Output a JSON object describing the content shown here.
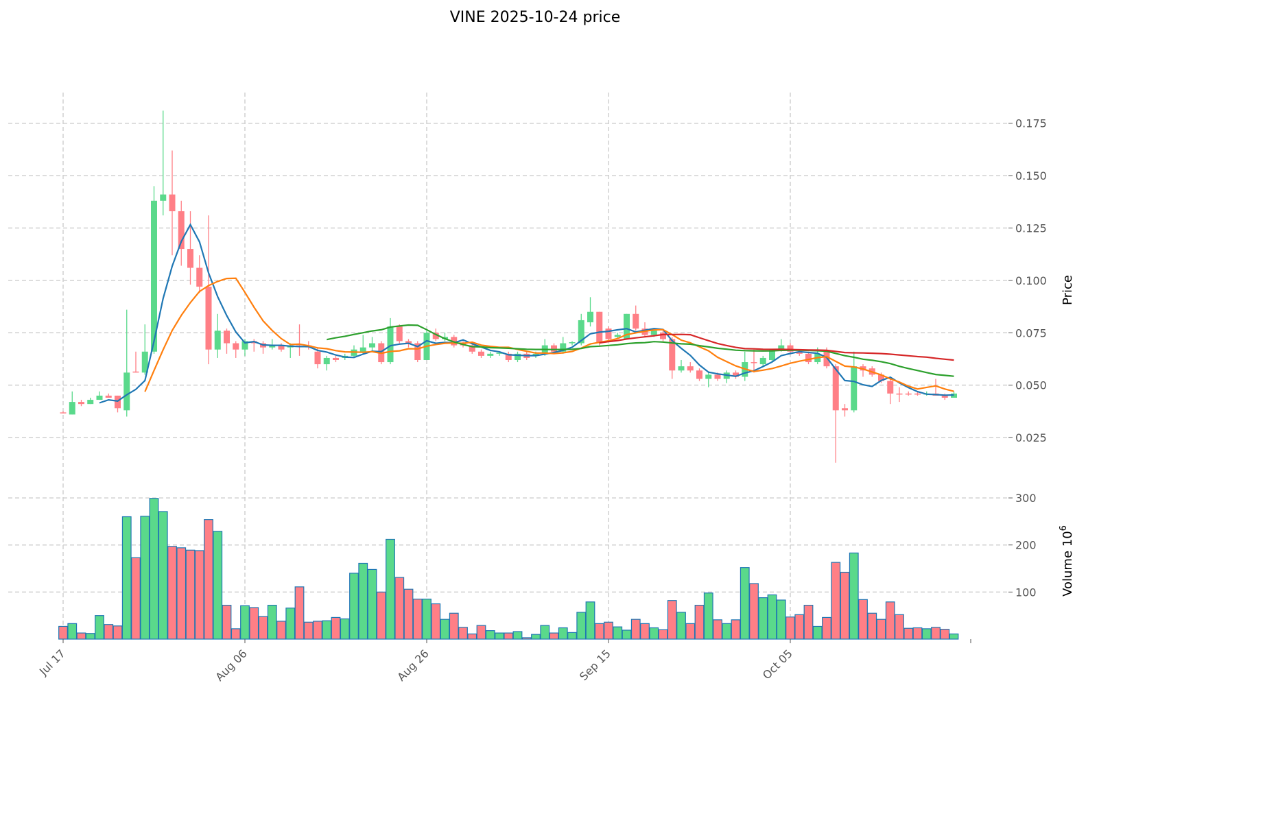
{
  "chart_data": {
    "type": "candlestick",
    "title": "VINE  2025-10-24  price",
    "ylabel": "Price",
    "volume_label": "Volume  10",
    "volume_label_exp": "6",
    "ylim": [
      0.008,
      0.188
    ],
    "volume_ylim": [
      0,
      338
    ],
    "grid": true,
    "start_date": "2025-07-17",
    "x_ticks": [
      {
        "index": 0,
        "label": "Jul 17"
      },
      {
        "index": 20,
        "label": "Aug 06"
      },
      {
        "index": 40,
        "label": "Aug 26"
      },
      {
        "index": 60,
        "label": "Sep 15"
      },
      {
        "index": 80,
        "label": "Oct 05"
      }
    ],
    "y_ticks": [
      {
        "value": 0.025,
        "label": "0.025"
      },
      {
        "value": 0.05,
        "label": "0.050"
      },
      {
        "value": 0.075,
        "label": "0.075"
      },
      {
        "value": 0.1,
        "label": "0.100"
      },
      {
        "value": 0.125,
        "label": "0.125"
      },
      {
        "value": 0.15,
        "label": "0.150"
      },
      {
        "value": 0.175,
        "label": "0.175"
      }
    ],
    "volume_ticks": [
      {
        "value": 100,
        "label": "100"
      },
      {
        "value": 200,
        "label": "200"
      },
      {
        "value": 300,
        "label": "300"
      }
    ],
    "moving_averages": [
      {
        "period": 5,
        "color": "#1f77b4"
      },
      {
        "period": 10,
        "color": "#ff7f0e"
      },
      {
        "period": 30,
        "color": "#2ca02c"
      },
      {
        "period": 60,
        "color": "#d62728"
      }
    ],
    "colors": {
      "up": "#5ad98b",
      "down": "#ff7f86",
      "volume_edge": "#1f77b4",
      "grid": "#d0d0d0"
    },
    "ohlc": [
      [
        0.037,
        0.0375,
        0.0365,
        0.0368
      ],
      [
        0.036,
        0.047,
        0.036,
        0.042
      ],
      [
        0.042,
        0.043,
        0.04,
        0.041
      ],
      [
        0.041,
        0.044,
        0.041,
        0.043
      ],
      [
        0.043,
        0.047,
        0.043,
        0.045
      ],
      [
        0.045,
        0.046,
        0.044,
        0.044
      ],
      [
        0.045,
        0.045,
        0.037,
        0.039
      ],
      [
        0.038,
        0.086,
        0.035,
        0.056
      ],
      [
        0.0565,
        0.066,
        0.056,
        0.056
      ],
      [
        0.056,
        0.079,
        0.055,
        0.066
      ],
      [
        0.066,
        0.145,
        0.065,
        0.138
      ],
      [
        0.138,
        0.181,
        0.131,
        0.141
      ],
      [
        0.141,
        0.162,
        0.112,
        0.133
      ],
      [
        0.133,
        0.138,
        0.107,
        0.115
      ],
      [
        0.115,
        0.133,
        0.098,
        0.106
      ],
      [
        0.106,
        0.112,
        0.094,
        0.097
      ],
      [
        0.097,
        0.131,
        0.06,
        0.067
      ],
      [
        0.067,
        0.084,
        0.063,
        0.076
      ],
      [
        0.076,
        0.077,
        0.065,
        0.07
      ],
      [
        0.07,
        0.071,
        0.063,
        0.067
      ],
      [
        0.067,
        0.072,
        0.064,
        0.071
      ],
      [
        0.071,
        0.072,
        0.066,
        0.07
      ],
      [
        0.07,
        0.071,
        0.065,
        0.068
      ],
      [
        0.068,
        0.072,
        0.067,
        0.069
      ],
      [
        0.069,
        0.07,
        0.066,
        0.067
      ],
      [
        0.068,
        0.07,
        0.063,
        0.069
      ],
      [
        0.0695,
        0.079,
        0.064,
        0.069
      ],
      [
        0.069,
        0.071,
        0.067,
        0.068
      ],
      [
        0.066,
        0.068,
        0.058,
        0.06
      ],
      [
        0.06,
        0.064,
        0.057,
        0.063
      ],
      [
        0.063,
        0.064,
        0.061,
        0.062
      ],
      [
        0.063,
        0.065,
        0.062,
        0.064
      ],
      [
        0.064,
        0.069,
        0.063,
        0.067
      ],
      [
        0.066,
        0.074,
        0.065,
        0.068
      ],
      [
        0.068,
        0.073,
        0.066,
        0.07
      ],
      [
        0.07,
        0.071,
        0.06,
        0.061
      ],
      [
        0.061,
        0.082,
        0.06,
        0.078
      ],
      [
        0.078,
        0.079,
        0.07,
        0.071
      ],
      [
        0.071,
        0.072,
        0.068,
        0.07
      ],
      [
        0.07,
        0.071,
        0.061,
        0.062
      ],
      [
        0.062,
        0.076,
        0.062,
        0.075
      ],
      [
        0.075,
        0.077,
        0.071,
        0.072
      ],
      [
        0.072,
        0.075,
        0.071,
        0.073
      ],
      [
        0.073,
        0.074,
        0.068,
        0.069
      ],
      [
        0.07,
        0.071,
        0.068,
        0.069
      ],
      [
        0.069,
        0.07,
        0.065,
        0.066
      ],
      [
        0.066,
        0.067,
        0.063,
        0.064
      ],
      [
        0.064,
        0.066,
        0.063,
        0.065
      ],
      [
        0.065,
        0.066,
        0.064,
        0.0655
      ],
      [
        0.065,
        0.066,
        0.061,
        0.062
      ],
      [
        0.062,
        0.066,
        0.061,
        0.065
      ],
      [
        0.065,
        0.066,
        0.062,
        0.063
      ],
      [
        0.064,
        0.066,
        0.063,
        0.065
      ],
      [
        0.065,
        0.072,
        0.064,
        0.069
      ],
      [
        0.069,
        0.07,
        0.065,
        0.066
      ],
      [
        0.066,
        0.073,
        0.065,
        0.07
      ],
      [
        0.07,
        0.071,
        0.069,
        0.0705
      ],
      [
        0.07,
        0.084,
        0.069,
        0.081
      ],
      [
        0.08,
        0.092,
        0.078,
        0.085
      ],
      [
        0.085,
        0.085,
        0.069,
        0.07
      ],
      [
        0.077,
        0.078,
        0.071,
        0.072
      ],
      [
        0.073,
        0.075,
        0.072,
        0.074
      ],
      [
        0.072,
        0.084,
        0.072,
        0.084
      ],
      [
        0.084,
        0.088,
        0.076,
        0.077
      ],
      [
        0.077,
        0.08,
        0.073,
        0.074
      ],
      [
        0.074,
        0.077,
        0.073,
        0.076
      ],
      [
        0.075,
        0.076,
        0.071,
        0.072
      ],
      [
        0.072,
        0.073,
        0.053,
        0.057
      ],
      [
        0.057,
        0.062,
        0.056,
        0.059
      ],
      [
        0.059,
        0.061,
        0.056,
        0.057
      ],
      [
        0.057,
        0.058,
        0.052,
        0.053
      ],
      [
        0.053,
        0.056,
        0.049,
        0.055
      ],
      [
        0.055,
        0.056,
        0.052,
        0.053
      ],
      [
        0.053,
        0.057,
        0.051,
        0.056
      ],
      [
        0.056,
        0.057,
        0.053,
        0.054
      ],
      [
        0.054,
        0.066,
        0.052,
        0.061
      ],
      [
        0.061,
        0.067,
        0.056,
        0.0605
      ],
      [
        0.06,
        0.064,
        0.059,
        0.063
      ],
      [
        0.062,
        0.067,
        0.061,
        0.067
      ],
      [
        0.067,
        0.072,
        0.066,
        0.069
      ],
      [
        0.069,
        0.07,
        0.065,
        0.066
      ],
      [
        0.066,
        0.067,
        0.064,
        0.065
      ],
      [
        0.065,
        0.066,
        0.06,
        0.061
      ],
      [
        0.061,
        0.068,
        0.06,
        0.065
      ],
      [
        0.066,
        0.068,
        0.058,
        0.059
      ],
      [
        0.059,
        0.06,
        0.013,
        0.038
      ],
      [
        0.039,
        0.041,
        0.035,
        0.038
      ],
      [
        0.038,
        0.066,
        0.037,
        0.059
      ],
      [
        0.059,
        0.06,
        0.054,
        0.057
      ],
      [
        0.058,
        0.059,
        0.054,
        0.055
      ],
      [
        0.055,
        0.056,
        0.051,
        0.052
      ],
      [
        0.052,
        0.053,
        0.041,
        0.046
      ],
      [
        0.046,
        0.049,
        0.042,
        0.0455
      ],
      [
        0.046,
        0.047,
        0.045,
        0.0455
      ],
      [
        0.046,
        0.047,
        0.045,
        0.0455
      ],
      [
        0.0455,
        0.047,
        0.045,
        0.046
      ],
      [
        0.046,
        0.053,
        0.045,
        0.045
      ],
      [
        0.045,
        0.046,
        0.043,
        0.044
      ],
      [
        0.044,
        0.047,
        0.044,
        0.046
      ]
    ],
    "volume": [
      27,
      33,
      13,
      12,
      50,
      31,
      28,
      260,
      173,
      261,
      299,
      271,
      197,
      194,
      189,
      188,
      254,
      229,
      72,
      22,
      71,
      67,
      48,
      72,
      38,
      66,
      111,
      36,
      38,
      39,
      46,
      43,
      140,
      161,
      148,
      100,
      212,
      131,
      106,
      85,
      85,
      75,
      42,
      55,
      25,
      11,
      29,
      18,
      13,
      13,
      16,
      3,
      10,
      29,
      13,
      24,
      14,
      57,
      79,
      33,
      36,
      26,
      19,
      42,
      33,
      24,
      20,
      82,
      57,
      33,
      72,
      98,
      41,
      33,
      41,
      152,
      118,
      88,
      94,
      83,
      47,
      52,
      72,
      27,
      46,
      163,
      142,
      183,
      84,
      55,
      42,
      79,
      52,
      23,
      24,
      22,
      25,
      21,
      11
    ]
  }
}
